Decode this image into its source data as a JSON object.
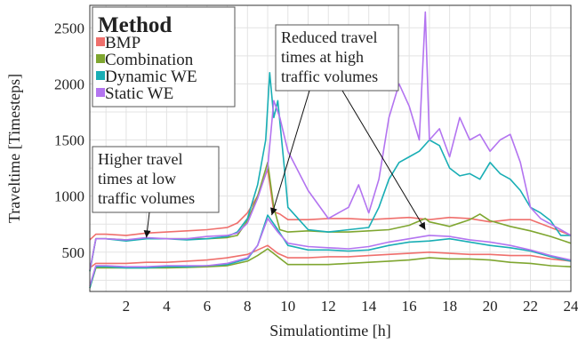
{
  "chart_data": {
    "type": "line",
    "xlabel": "Simulationtime [h]",
    "ylabel": "Traveltime [Timesteps]",
    "xlim": [
      0.2,
      24
    ],
    "ylim": [
      150,
      2700
    ],
    "x_ticks": [
      2,
      4,
      6,
      8,
      10,
      12,
      14,
      16,
      18,
      20,
      22,
      24
    ],
    "y_ticks": [
      500,
      1000,
      1500,
      2000,
      2500
    ],
    "grid": true,
    "legend": {
      "title": "Method",
      "placement": "top-left",
      "entries": [
        "BMP",
        "Combination",
        "Dynamic WE",
        "Static WE"
      ]
    },
    "annotations": [
      {
        "lines": [
          "Higher travel",
          "times at low",
          "traffic volumes"
        ],
        "arrow_targets": [
          [
            3,
            630
          ]
        ]
      },
      {
        "lines": [
          "Reduced travel",
          "times at high",
          "traffic volumes"
        ],
        "arrow_targets": [
          [
            9.2,
            830
          ],
          [
            16.8,
            700
          ]
        ]
      }
    ],
    "series": [
      {
        "name": "BMP",
        "color": "#ef6f6c",
        "upper": {
          "x": [
            0.2,
            0.5,
            1,
            2,
            3,
            4,
            5,
            6,
            7,
            7.5,
            8,
            8.5,
            9,
            9.3,
            9.6,
            10,
            11,
            12,
            13,
            14,
            15,
            16,
            17,
            18,
            19,
            20,
            21,
            22,
            23,
            24
          ],
          "y": [
            610,
            660,
            660,
            650,
            670,
            680,
            690,
            700,
            720,
            760,
            850,
            1000,
            1240,
            860,
            840,
            790,
            790,
            800,
            800,
            790,
            800,
            810,
            790,
            810,
            800,
            770,
            790,
            790,
            720,
            650
          ]
        },
        "lower": {
          "x": [
            0.2,
            0.5,
            1,
            2,
            3,
            4,
            5,
            6,
            7,
            8,
            8.5,
            9,
            9.5,
            10,
            11,
            12,
            13,
            14,
            15,
            16,
            17,
            18,
            19,
            20,
            21,
            22,
            23,
            24
          ],
          "y": [
            360,
            400,
            400,
            400,
            410,
            410,
            420,
            430,
            450,
            480,
            520,
            560,
            490,
            450,
            450,
            460,
            460,
            470,
            480,
            490,
            500,
            490,
            480,
            480,
            470,
            470,
            440,
            420
          ]
        }
      },
      {
        "name": "Combination",
        "color": "#7fa630",
        "upper": {
          "x": [
            0.2,
            0.5,
            1,
            2,
            3,
            4,
            5,
            6,
            7,
            7.5,
            8,
            8.5,
            9,
            9.3,
            9.6,
            10,
            11,
            12,
            13,
            14,
            15,
            16,
            16.8,
            17,
            18,
            19,
            19.5,
            20,
            21,
            22,
            23,
            24
          ],
          "y": [
            330,
            620,
            620,
            610,
            620,
            620,
            620,
            620,
            630,
            650,
            780,
            1000,
            1300,
            900,
            700,
            680,
            690,
            680,
            680,
            690,
            700,
            740,
            800,
            770,
            730,
            790,
            840,
            780,
            730,
            690,
            640,
            580
          ]
        },
        "lower": {
          "x": [
            0.2,
            0.5,
            1,
            2,
            3,
            4,
            5,
            6,
            7,
            8,
            8.5,
            9,
            9.5,
            10,
            11,
            12,
            13,
            14,
            15,
            16,
            17,
            18,
            19,
            20,
            21,
            22,
            23,
            24
          ],
          "y": [
            180,
            360,
            360,
            360,
            360,
            360,
            365,
            370,
            380,
            420,
            470,
            530,
            460,
            390,
            390,
            390,
            400,
            410,
            420,
            430,
            450,
            440,
            440,
            430,
            410,
            400,
            380,
            370
          ]
        }
      },
      {
        "name": "Dynamic WE",
        "color": "#19aeb5",
        "upper": {
          "x": [
            0.2,
            0.5,
            1,
            2,
            3,
            4,
            5,
            6,
            7,
            7.5,
            8,
            8.5,
            8.9,
            9.1,
            9.3,
            9.5,
            9.8,
            10,
            11,
            12,
            13,
            14,
            14.5,
            15,
            15.5,
            16,
            16.5,
            17,
            17.5,
            18,
            18.5,
            19,
            19.5,
            20,
            20.5,
            21,
            21.5,
            22,
            22.5,
            23,
            23.5,
            24
          ],
          "y": [
            330,
            620,
            620,
            600,
            620,
            620,
            610,
            620,
            640,
            680,
            800,
            1100,
            1500,
            2100,
            1700,
            1850,
            1300,
            900,
            700,
            680,
            700,
            720,
            900,
            1150,
            1300,
            1350,
            1400,
            1500,
            1450,
            1250,
            1180,
            1200,
            1150,
            1300,
            1200,
            1150,
            1050,
            900,
            850,
            780,
            650,
            650
          ]
        },
        "lower": {
          "x": [
            0.2,
            0.5,
            1,
            2,
            3,
            4,
            5,
            6,
            7,
            8,
            8.5,
            9,
            9.5,
            10,
            11,
            12,
            13,
            14,
            15,
            16,
            17,
            18,
            19,
            20,
            21,
            22,
            23,
            24
          ],
          "y": [
            180,
            370,
            370,
            360,
            360,
            370,
            370,
            380,
            390,
            440,
            560,
            830,
            700,
            560,
            520,
            520,
            510,
            520,
            560,
            590,
            600,
            620,
            590,
            560,
            540,
            510,
            460,
            420
          ]
        }
      },
      {
        "name": "Static WE",
        "color": "#b374f0",
        "upper": {
          "x": [
            0.2,
            0.5,
            1,
            2,
            3,
            4,
            5,
            6,
            7,
            7.5,
            8,
            8.5,
            9,
            9.3,
            9.6,
            10,
            11,
            12,
            13,
            13.5,
            14,
            14.5,
            15,
            15.5,
            16,
            16.5,
            16.8,
            17,
            17.5,
            18,
            18.5,
            19,
            19.5,
            20,
            20.5,
            21,
            21.5,
            22,
            22.5,
            23,
            23.5,
            24
          ],
          "y": [
            340,
            620,
            620,
            610,
            630,
            620,
            620,
            640,
            650,
            670,
            760,
            980,
            1250,
            1850,
            1700,
            1400,
            1050,
            800,
            900,
            1100,
            850,
            1150,
            1700,
            2000,
            1800,
            1500,
            2640,
            1500,
            1600,
            1350,
            1700,
            1500,
            1550,
            1400,
            1500,
            1550,
            1300,
            900,
            800,
            750,
            700,
            650
          ]
        },
        "lower": {
          "x": [
            0.2,
            0.5,
            1,
            2,
            3,
            4,
            5,
            6,
            7,
            8,
            8.5,
            9,
            9.5,
            10,
            11,
            12,
            13,
            14,
            15,
            16,
            17,
            18,
            19,
            20,
            21,
            22,
            23,
            24
          ],
          "y": [
            200,
            380,
            380,
            370,
            370,
            380,
            380,
            380,
            400,
            450,
            560,
            800,
            680,
            580,
            550,
            540,
            530,
            550,
            590,
            620,
            650,
            640,
            610,
            590,
            560,
            520,
            470,
            430
          ]
        }
      }
    ]
  }
}
